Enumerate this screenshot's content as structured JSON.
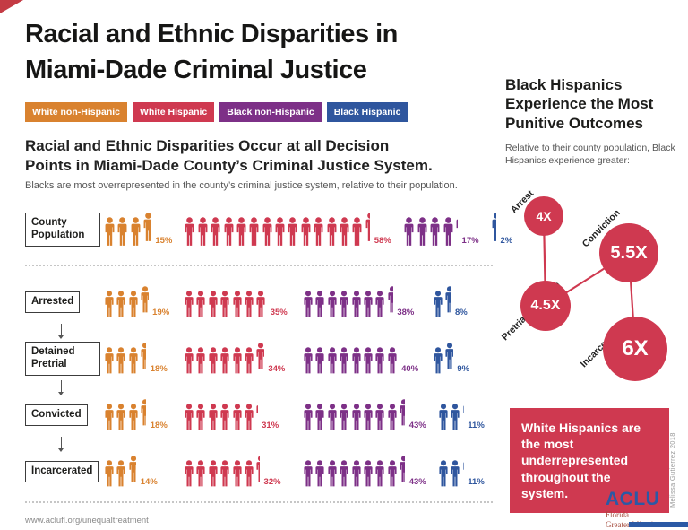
{
  "title": {
    "line1": "Racial and Ethnic Disparities in",
    "line2": "Miami-Dade Criminal Justice"
  },
  "legend": [
    {
      "label": "White non-Hispanic",
      "color": "#d9822f"
    },
    {
      "label": "White Hispanic",
      "color": "#cf3950"
    },
    {
      "label": "Black non-Hispanic",
      "color": "#7d3087"
    },
    {
      "label": "Black Hispanic",
      "color": "#2f569e"
    }
  ],
  "section": {
    "heading_line1": "Racial and Ethnic Disparities Occur at all Decision",
    "heading_line2": "Points in Miami-Dade County’s Criminal Justice System.",
    "subheading": "Blacks are most overrepresented in the county’s criminal justice system, relative to their population."
  },
  "chart_data": [
    {
      "type": "pictogram",
      "unit": "%",
      "title": "Racial and Ethnic Disparities Occur at all Decision Points in Miami-Dade County’s Criminal Justice System.",
      "categories": [
        "County Population",
        "Arrested",
        "Detained Pretrial",
        "Convicted",
        "Incarcerated"
      ],
      "series": [
        {
          "name": "White non-Hispanic",
          "color": "#d9822f",
          "values": [
            15,
            19,
            18,
            18,
            14
          ]
        },
        {
          "name": "White Hispanic",
          "color": "#cf3950",
          "values": [
            58,
            35,
            34,
            31,
            32
          ]
        },
        {
          "name": "Black non-Hispanic",
          "color": "#7d3087",
          "values": [
            17,
            38,
            40,
            43,
            43
          ]
        },
        {
          "name": "Black Hispanic",
          "color": "#2f569e",
          "values": [
            2,
            8,
            9,
            11,
            11
          ]
        }
      ],
      "layout": {
        "pct_per_icon": [
          4,
          5,
          5,
          5,
          5
        ],
        "legend_position": "top",
        "grid": false
      }
    },
    {
      "type": "bubble",
      "unit": "X",
      "title": "Black Hispanics Experience the Most Punitive Outcomes",
      "subtitle": "Relative to their county population, Black Hispanics experience greater:",
      "points": [
        {
          "label": "Arrest",
          "value": 4
        },
        {
          "label": "Conviction",
          "value": 5.5
        },
        {
          "label": "Pretrial Detention",
          "value": 4.5
        },
        {
          "label": "Incarceration",
          "value": 6
        }
      ]
    }
  ],
  "right_panel": {
    "heading": "Black Hispanics Experience the Most Punitive Outcomes",
    "subheading": "Relative to their county population, Black Hispanics experience greater:",
    "bubbles": [
      {
        "label": "Arrest",
        "value_display": "4X"
      },
      {
        "label": "Conviction",
        "value_display": "5.5X"
      },
      {
        "label": "Pretrial Detention",
        "value_display": "4.5X"
      },
      {
        "label": "Incarceration",
        "value_display": "6X"
      }
    ],
    "callout": "White Hispanics are the most underrepresented throughout the system.",
    "credit": "Melissa Gutierrez 2018",
    "accent_color": "#cf3950",
    "logo": {
      "org": "ACLU",
      "affiliate_line1": "Florida",
      "affiliate_line2": "Greater Miami"
    }
  },
  "footer": {
    "url": "www.aclufl.org/unequaltreatment"
  }
}
